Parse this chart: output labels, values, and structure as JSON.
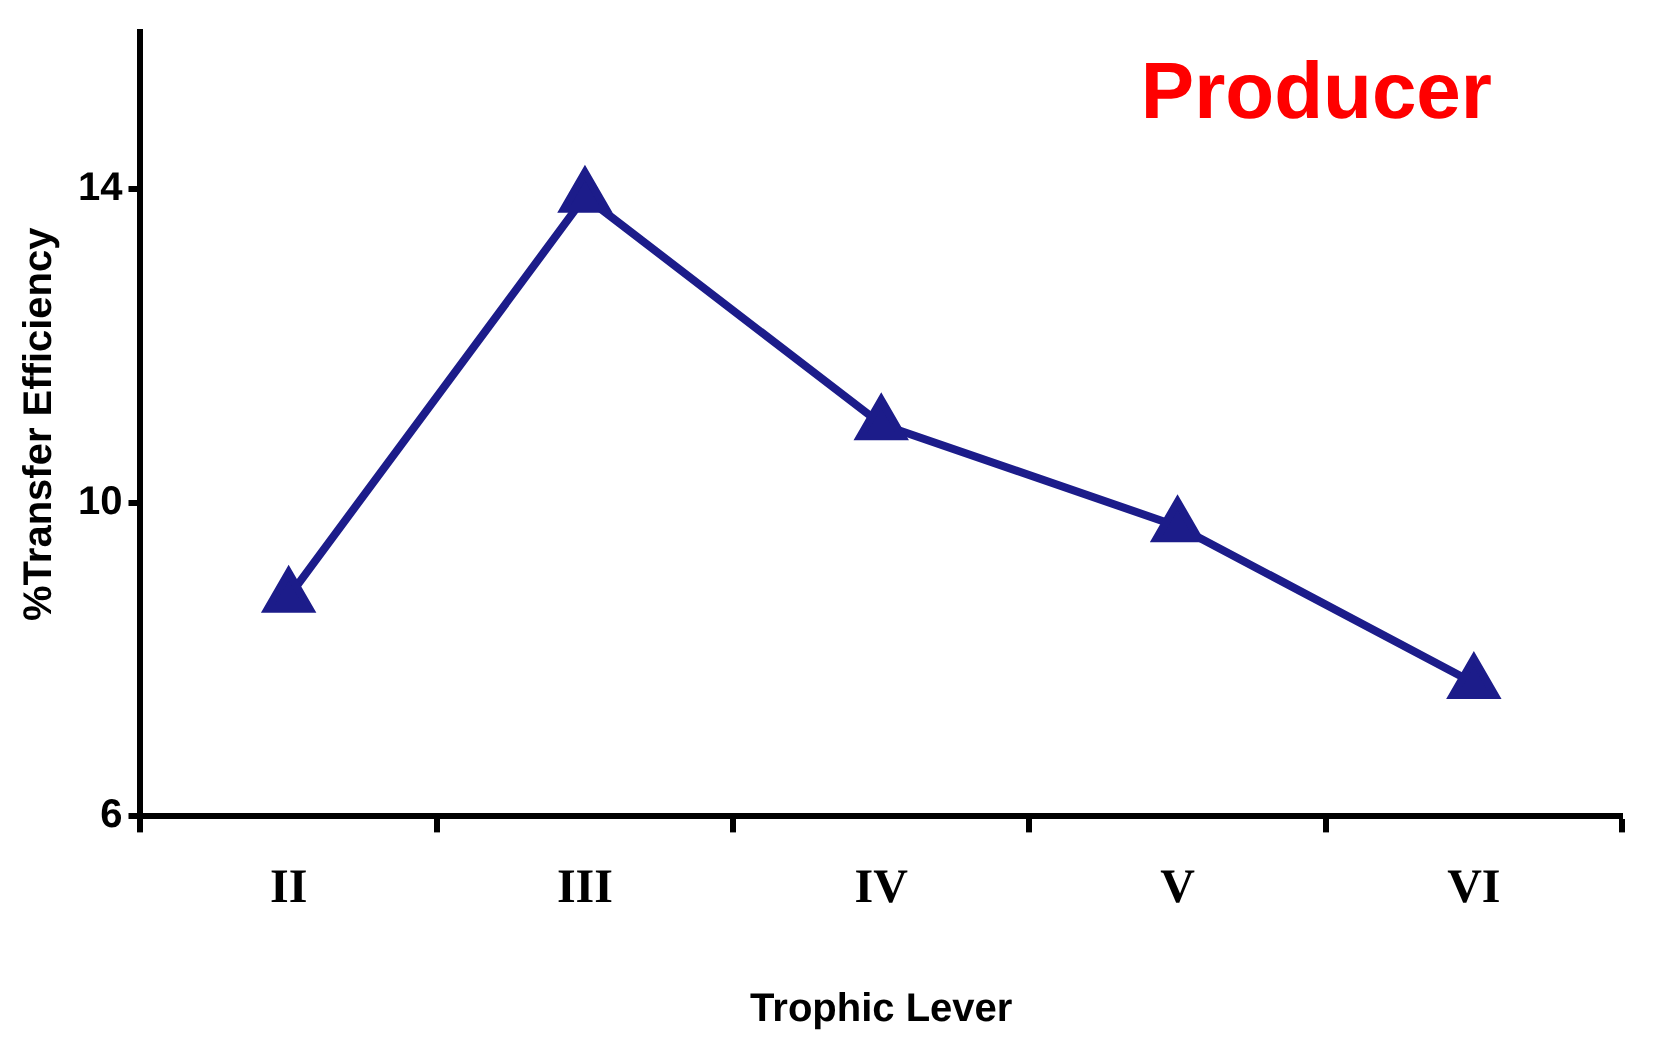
{
  "chart_data": {
    "type": "line",
    "title": "Producer",
    "xlabel": "Trophic Lever",
    "ylabel": "%Transfer Efficiency",
    "categories": [
      "II",
      "III",
      "IV",
      "V",
      "VI"
    ],
    "series": [
      {
        "color": "#1c1c8a",
        "values": [
          8.8,
          13.9,
          11.0,
          9.7,
          7.7
        ]
      }
    ],
    "ylim": [
      6,
      16
    ],
    "yticks": [
      6,
      10,
      14
    ],
    "grid": false,
    "legend": false,
    "marker": "triangle",
    "line_style": "solid"
  }
}
